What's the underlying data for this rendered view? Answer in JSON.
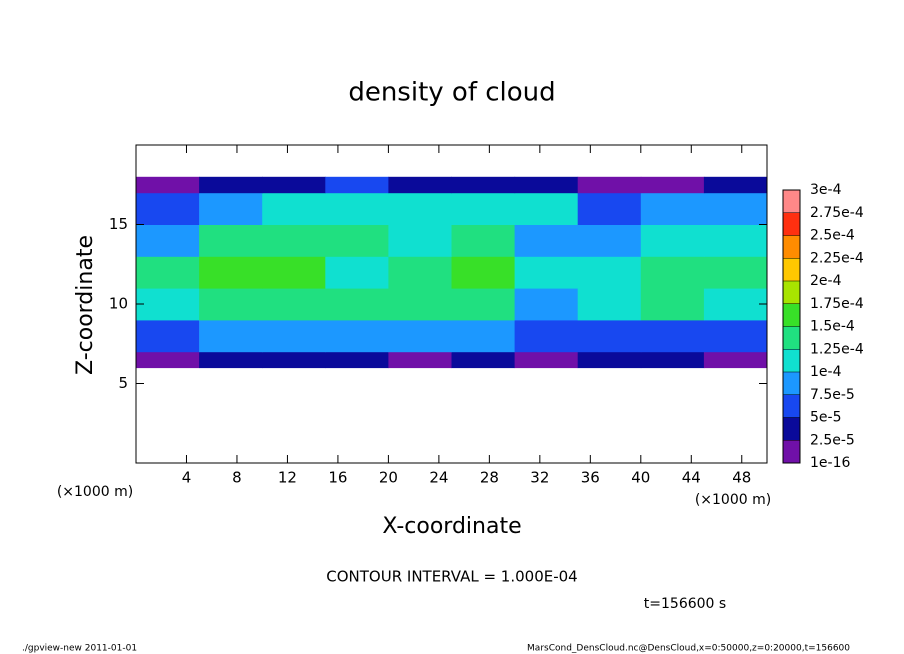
{
  "chart_data": {
    "type": "heatmap",
    "title": "density of cloud",
    "xlabel": "X-coordinate",
    "ylabel": "Z-coordinate",
    "x_unit": "(×1000 m)",
    "y_unit": "(×1000 m)",
    "annotation": "CONTOUR INTERVAL = 1.000E-04",
    "time_label": "t=156600 s",
    "footer_left": "./gpview-new  2011-01-01",
    "footer_right": "MarsCond_DensCloud.nc@DensCloud,x=0:50000,z=0:20000,t=156600",
    "xlim": [
      0,
      50
    ],
    "ylim": [
      0,
      20
    ],
    "xticks": [
      4,
      8,
      12,
      16,
      20,
      24,
      28,
      32,
      36,
      40,
      44,
      48
    ],
    "yticks": [
      5,
      10,
      15
    ],
    "x_edges": [
      0,
      5,
      10,
      15,
      20,
      25,
      30,
      35,
      40,
      45,
      50
    ],
    "z_edges": [
      6,
      7,
      9,
      11,
      13,
      15,
      17,
      18
    ],
    "values": [
      [
        2e-05,
        3e-05,
        3e-05,
        3e-05,
        2e-05,
        3e-05,
        1e-05,
        3e-05,
        3e-05,
        2e-05
      ],
      [
        6e-05,
        8e-05,
        8e-05,
        9e-05,
        9e-05,
        8e-05,
        5e-05,
        7e-05,
        7e-05,
        6e-05
      ],
      [
        0.00012,
        0.00014,
        0.00014,
        0.00013,
        0.00014,
        0.00013,
        9e-05,
        0.00012,
        0.00013,
        0.00011
      ],
      [
        0.00013,
        0.00015,
        0.00016,
        0.00012,
        0.00014,
        0.00015,
        0.0001,
        0.00011,
        0.00013,
        0.00014
      ],
      [
        9e-05,
        0.00013,
        0.00014,
        0.00014,
        0.00012,
        0.00013,
        9e-05,
        8e-05,
        0.00012,
        0.00011
      ],
      [
        6e-05,
        9e-05,
        0.00011,
        0.0001,
        0.00011,
        0.00012,
        0.0001,
        7e-05,
        9e-05,
        8e-05
      ],
      [
        2e-05,
        3e-05,
        4e-05,
        5e-05,
        3e-05,
        4e-05,
        3e-05,
        2e-05,
        2e-05,
        3e-05
      ]
    ],
    "colorbar": {
      "levels": [
        {
          "value": 1e-16,
          "label": "1e-16"
        },
        {
          "value": 2.5e-05,
          "label": "2.5e-5"
        },
        {
          "value": 5e-05,
          "label": "5e-5"
        },
        {
          "value": 7.5e-05,
          "label": "7.5e-5"
        },
        {
          "value": 0.0001,
          "label": "1e-4"
        },
        {
          "value": 0.000125,
          "label": "1.25e-4"
        },
        {
          "value": 0.00015,
          "label": "1.5e-4"
        },
        {
          "value": 0.000175,
          "label": "1.75e-4"
        },
        {
          "value": 0.0002,
          "label": "2e-4"
        },
        {
          "value": 0.000225,
          "label": "2.25e-4"
        },
        {
          "value": 0.00025,
          "label": "2.5e-4"
        },
        {
          "value": 0.000275,
          "label": "2.75e-4"
        },
        {
          "value": 0.0003,
          "label": "3e-4"
        }
      ],
      "colors": [
        "#7010a8",
        "#0a0a9a",
        "#1848f0",
        "#1c98ff",
        "#10e0d0",
        "#20e080",
        "#38e028",
        "#a8e400",
        "#ffc800",
        "#ff8c00",
        "#ff3010",
        "#ff8888"
      ]
    }
  }
}
